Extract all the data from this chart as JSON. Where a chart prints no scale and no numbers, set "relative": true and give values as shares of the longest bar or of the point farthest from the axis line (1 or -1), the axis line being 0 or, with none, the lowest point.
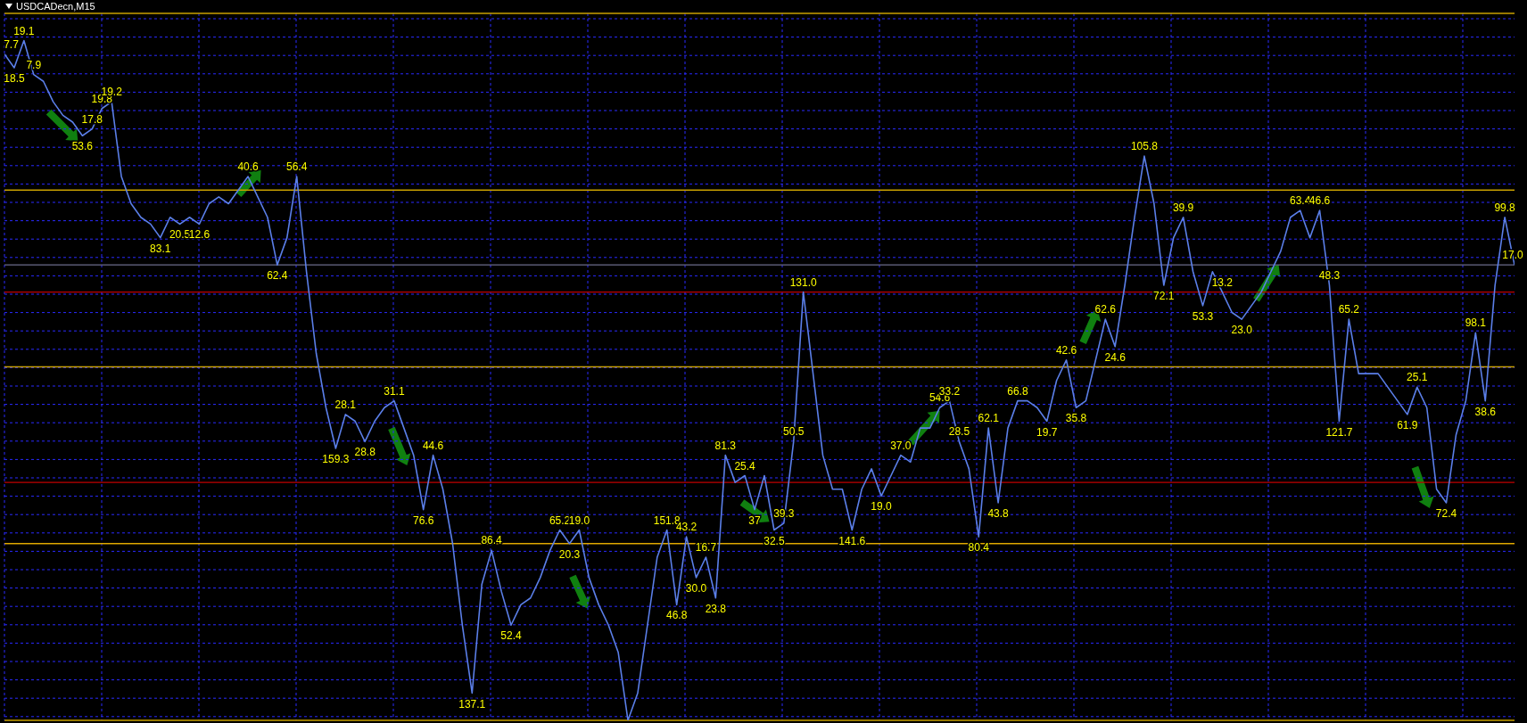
{
  "chart_data": {
    "type": "line",
    "title": "USDCADecn,M15",
    "relative": true,
    "grid": true,
    "legend": false,
    "tick_labels": false,
    "marker": "none",
    "line_style": "solid",
    "categories": [
      null,
      null,
      null,
      null,
      null,
      null,
      null,
      null,
      null,
      null,
      null,
      null,
      null,
      null,
      null,
      null,
      null,
      null,
      null,
      null,
      null,
      null,
      null,
      null,
      null,
      null,
      null,
      null,
      null,
      null,
      null,
      null,
      null,
      null,
      null,
      null,
      null,
      null,
      null,
      null,
      null,
      null,
      null,
      null,
      null,
      null,
      null,
      null,
      null,
      null,
      null,
      null,
      null,
      null,
      null,
      null,
      null,
      null,
      null,
      null,
      null,
      null,
      null,
      null,
      null,
      null,
      null,
      null,
      null,
      null,
      null,
      null,
      null,
      null,
      null,
      null,
      null,
      null,
      null,
      null,
      null,
      null,
      null,
      null,
      null,
      null,
      null,
      null,
      null,
      null,
      null,
      null,
      null,
      null,
      null,
      null,
      null,
      null,
      null,
      null,
      null,
      null,
      null,
      null,
      null,
      null,
      null,
      null,
      null,
      null,
      null,
      null,
      null,
      null,
      null,
      null,
      null,
      null,
      null,
      null,
      null,
      null,
      null,
      null,
      null,
      null,
      null,
      null,
      null,
      null,
      null,
      null,
      null,
      null,
      null,
      null,
      null,
      null,
      null,
      null,
      null,
      null,
      null,
      null,
      null,
      null,
      null,
      null,
      null,
      null,
      null,
      null,
      null,
      null,
      null,
      null
    ],
    "series": [
      {
        "color": "#5b7fe8",
        "values": [
          0.98,
          0.96,
          1.0,
          0.95,
          0.94,
          0.91,
          0.89,
          0.88,
          0.86,
          0.87,
          0.9,
          0.91,
          0.8,
          0.76,
          0.74,
          0.73,
          0.71,
          0.74,
          0.73,
          0.74,
          0.73,
          0.76,
          0.77,
          0.76,
          0.78,
          0.8,
          0.77,
          0.74,
          0.67,
          0.71,
          0.8,
          0.66,
          0.54,
          0.46,
          0.4,
          0.45,
          0.44,
          0.41,
          0.44,
          0.46,
          0.47,
          0.43,
          0.39,
          0.31,
          0.39,
          0.34,
          0.26,
          0.14,
          0.04,
          0.2,
          0.25,
          0.19,
          0.14,
          0.17,
          0.18,
          0.21,
          0.25,
          0.28,
          0.26,
          0.28,
          0.21,
          0.17,
          0.14,
          0.1,
          0.0,
          0.04,
          0.14,
          0.24,
          0.28,
          0.17,
          0.27,
          0.21,
          0.24,
          0.18,
          0.39,
          0.35,
          0.36,
          0.31,
          0.36,
          0.28,
          0.29,
          0.41,
          0.63,
          0.51,
          0.39,
          0.34,
          0.34,
          0.28,
          0.34,
          0.37,
          0.33,
          0.36,
          0.39,
          0.38,
          0.43,
          0.43,
          0.46,
          0.47,
          0.41,
          0.37,
          0.27,
          0.43,
          0.32,
          0.43,
          0.47,
          0.47,
          0.46,
          0.44,
          0.5,
          0.53,
          0.46,
          0.47,
          0.53,
          0.59,
          0.55,
          0.64,
          0.74,
          0.83,
          0.76,
          0.64,
          0.71,
          0.74,
          0.66,
          0.61,
          0.66,
          0.63,
          0.6,
          0.59,
          0.61,
          0.63,
          0.66,
          0.69,
          0.74,
          0.75,
          0.71,
          0.75,
          0.64,
          0.44,
          0.59,
          0.51,
          0.51,
          0.51,
          0.49,
          0.47,
          0.45,
          0.49,
          0.46,
          0.34,
          0.32,
          0.42,
          0.47,
          0.57,
          0.47,
          0.64,
          0.74,
          0.67
        ]
      }
    ],
    "annotations": [
      "7.7",
      "18.5",
      "19.1",
      "7.9",
      "53.6",
      "17.8",
      "19.8",
      "19.2",
      "83.1",
      "20.5",
      "12.6",
      "40.6",
      "62.4",
      "56.4",
      "159.3",
      "28.1",
      "28.8",
      "31.1",
      "76.6",
      "44.6",
      "137.1",
      "86.4",
      "52.4",
      "65.2",
      "20.3",
      "19.0",
      "151.8",
      "46.8",
      "43.2",
      "30.0",
      "16.7",
      "23.8",
      "81.3",
      "25.4",
      "37",
      "32.5",
      "39.3",
      "50.5",
      "131.0",
      "141.6",
      "19.0",
      "37.0",
      "54.6",
      "33.2",
      "28.5",
      "80.4",
      "62.1",
      "43.8",
      "66.8",
      "19.7",
      "42.6",
      "35.8",
      "62.6",
      "24.6",
      "105.8",
      "72.1",
      "39.9",
      "53.3",
      "13.2",
      "23.0",
      "63.4",
      "46.6",
      "48.3",
      "121.7",
      "65.2",
      "61.9",
      "25.1",
      "72.4",
      "98.1",
      "38.6",
      "99.8",
      "17.0"
    ],
    "ref_lines": [
      {
        "axis": "y",
        "value": 1.04,
        "color": "#c8a000"
      },
      {
        "axis": "y",
        "value": 0.78,
        "color": "#c8a000"
      },
      {
        "axis": "y",
        "value": 0.67,
        "color": "#6b6b8a"
      },
      {
        "axis": "y",
        "value": 0.63,
        "color": "#c00000"
      },
      {
        "axis": "y",
        "value": 0.52,
        "color": "#c8a000"
      },
      {
        "axis": "y",
        "value": 0.35,
        "color": "#c00000"
      },
      {
        "axis": "y",
        "value": 0.26,
        "color": "#e0a800"
      },
      {
        "axis": "y",
        "value": 0.0,
        "color": "#c8a000"
      }
    ]
  }
}
